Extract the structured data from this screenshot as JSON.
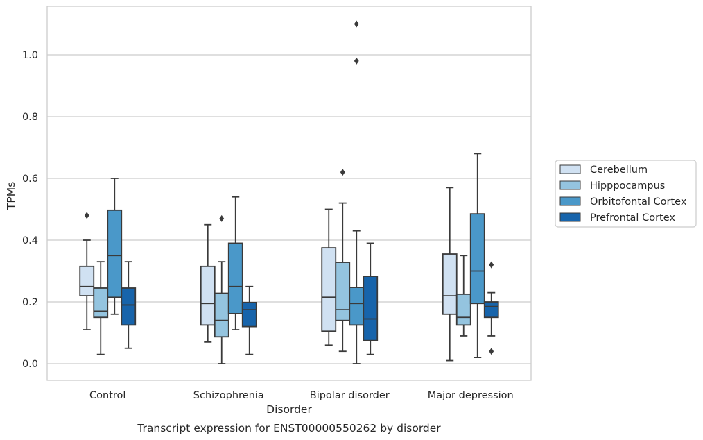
{
  "chart_data": {
    "type": "box",
    "title": "",
    "caption": "Transcript expression for ENST00000550262 by disorder",
    "xlabel": "Disorder",
    "ylabel": "TPMs",
    "categories": [
      "Control",
      "Schizophrenia",
      "Bipolar disorder",
      "Major depression"
    ],
    "ylim": [
      -0.053,
      1.16
    ],
    "yticks": [
      "0.0",
      "0.2",
      "0.4",
      "0.6",
      "0.8",
      "1.0"
    ],
    "grid": true,
    "legend_position": "right",
    "series": [
      {
        "name": "Cerebellum",
        "color": "#d0e1f2",
        "boxes": [
          {
            "whislo": 0.11,
            "q1": 0.22,
            "med": 0.25,
            "q3": 0.315,
            "whishi": 0.4,
            "fliers": [
              0.48
            ]
          },
          {
            "whislo": 0.07,
            "q1": 0.125,
            "med": 0.195,
            "q3": 0.315,
            "whishi": 0.45,
            "fliers": []
          },
          {
            "whislo": 0.06,
            "q1": 0.105,
            "med": 0.215,
            "q3": 0.375,
            "whishi": 0.5,
            "fliers": []
          },
          {
            "whislo": 0.01,
            "q1": 0.16,
            "med": 0.22,
            "q3": 0.355,
            "whishi": 0.57,
            "fliers": []
          }
        ]
      },
      {
        "name": "Hipppocampus",
        "color": "#94c4df",
        "boxes": [
          {
            "whislo": 0.03,
            "q1": 0.15,
            "med": 0.17,
            "q3": 0.245,
            "whishi": 0.33,
            "fliers": []
          },
          {
            "whislo": 0.0,
            "q1": 0.087,
            "med": 0.14,
            "q3": 0.228,
            "whishi": 0.33,
            "fliers": [
              0.47
            ]
          },
          {
            "whislo": 0.04,
            "q1": 0.14,
            "med": 0.175,
            "q3": 0.328,
            "whishi": 0.52,
            "fliers": [
              0.62
            ]
          },
          {
            "whislo": 0.09,
            "q1": 0.125,
            "med": 0.15,
            "q3": 0.225,
            "whishi": 0.35,
            "fliers": []
          }
        ]
      },
      {
        "name": "Orbitofontal Cortex",
        "color": "#4a98c9",
        "boxes": [
          {
            "whislo": 0.16,
            "q1": 0.215,
            "med": 0.35,
            "q3": 0.497,
            "whishi": 0.6,
            "fliers": []
          },
          {
            "whislo": 0.11,
            "q1": 0.162,
            "med": 0.25,
            "q3": 0.39,
            "whishi": 0.54,
            "fliers": []
          },
          {
            "whislo": 0.0,
            "q1": 0.125,
            "med": 0.195,
            "q3": 0.247,
            "whishi": 0.43,
            "fliers": [
              0.98,
              1.1
            ]
          },
          {
            "whislo": 0.02,
            "q1": 0.195,
            "med": 0.3,
            "q3": 0.485,
            "whishi": 0.68,
            "fliers": []
          }
        ]
      },
      {
        "name": "Prefrontal Cortex",
        "color": "#1764ab",
        "boxes": [
          {
            "whislo": 0.05,
            "q1": 0.125,
            "med": 0.19,
            "q3": 0.245,
            "whishi": 0.33,
            "fliers": []
          },
          {
            "whislo": 0.03,
            "q1": 0.12,
            "med": 0.175,
            "q3": 0.198,
            "whishi": 0.25,
            "fliers": []
          },
          {
            "whislo": 0.03,
            "q1": 0.075,
            "med": 0.145,
            "q3": 0.283,
            "whishi": 0.39,
            "fliers": []
          },
          {
            "whislo": 0.09,
            "q1": 0.15,
            "med": 0.185,
            "q3": 0.2,
            "whishi": 0.23,
            "fliers": [
              0.04,
              0.32
            ]
          }
        ]
      }
    ]
  }
}
